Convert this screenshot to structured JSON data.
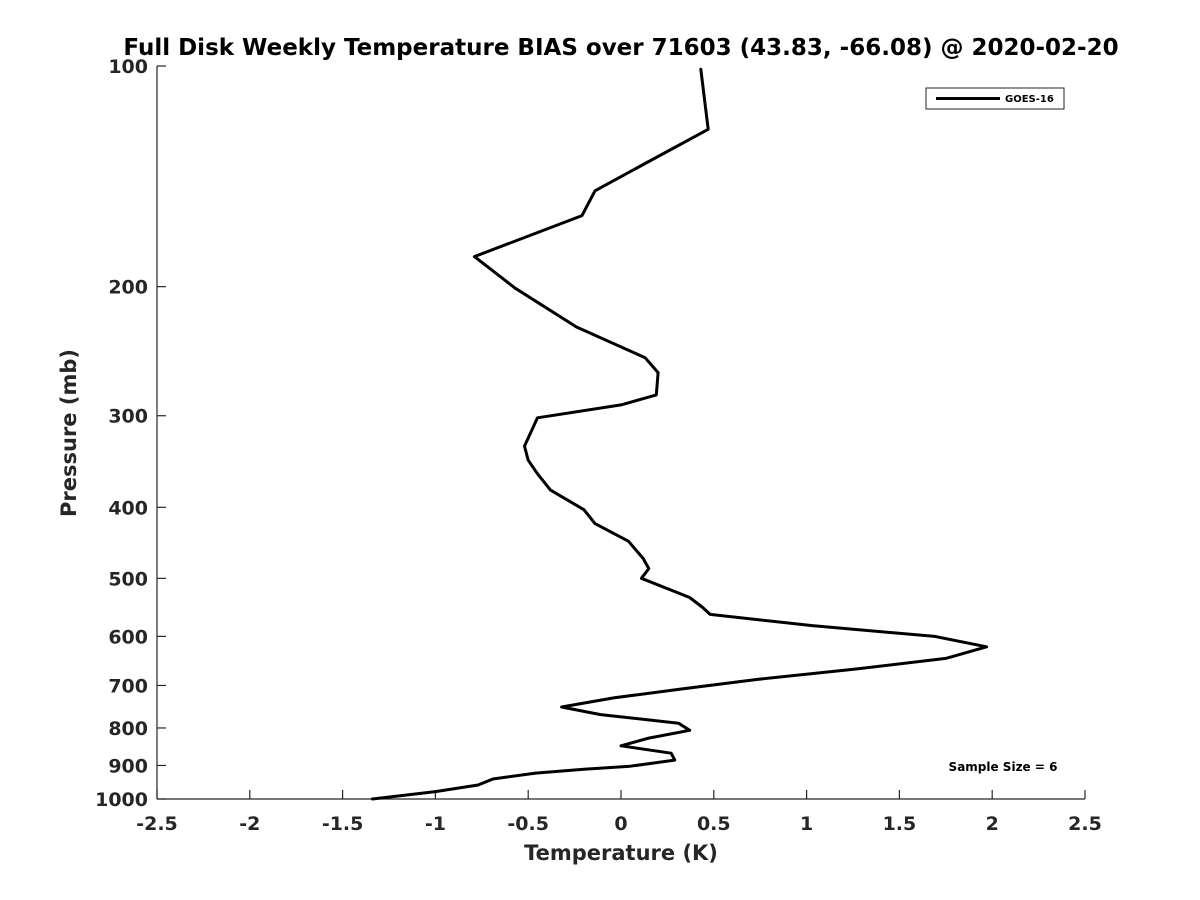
{
  "chart_data": {
    "type": "line",
    "title": "Full Disk Weekly Temperature BIAS over 71603 (43.83, -66.08) @ 2020-02-20",
    "xlabel": "Temperature (K)",
    "ylabel": "Pressure (mb)",
    "xlim": [
      -2.5,
      2.5
    ],
    "ylim": [
      1000,
      100
    ],
    "y_scale": "log",
    "y_reversed": true,
    "x_ticks": [
      "-2.5",
      "-2",
      "-1.5",
      "-1",
      "-0.5",
      "0",
      "0.5",
      "1",
      "1.5",
      "2",
      "2.5"
    ],
    "x_tick_values": [
      -2.5,
      -2,
      -1.5,
      -1,
      -0.5,
      0,
      0.5,
      1,
      1.5,
      2,
      2.5
    ],
    "y_ticks": [
      "100",
      "200",
      "300",
      "400",
      "500",
      "600",
      "700",
      "800",
      "900",
      "1000"
    ],
    "y_tick_values": [
      100,
      200,
      300,
      400,
      500,
      600,
      700,
      800,
      900,
      1000
    ],
    "grid": false,
    "legend_position": "top-right",
    "annotation": "Sample Size = 6",
    "line_color": "#000000",
    "series": [
      {
        "name": "GOES-16",
        "points": [
          {
            "x": -1.34,
            "y": 1000
          },
          {
            "x": -1.0,
            "y": 977
          },
          {
            "x": -0.77,
            "y": 957
          },
          {
            "x": -0.69,
            "y": 939
          },
          {
            "x": -0.46,
            "y": 922
          },
          {
            "x": -0.2,
            "y": 911
          },
          {
            "x": 0.05,
            "y": 902
          },
          {
            "x": 0.29,
            "y": 885
          },
          {
            "x": 0.27,
            "y": 866
          },
          {
            "x": 0.0,
            "y": 846
          },
          {
            "x": 0.15,
            "y": 826
          },
          {
            "x": 0.37,
            "y": 806
          },
          {
            "x": 0.31,
            "y": 788
          },
          {
            "x": -0.11,
            "y": 767
          },
          {
            "x": -0.32,
            "y": 749
          },
          {
            "x": -0.04,
            "y": 728
          },
          {
            "x": 0.32,
            "y": 708
          },
          {
            "x": 0.73,
            "y": 687
          },
          {
            "x": 1.26,
            "y": 665
          },
          {
            "x": 1.75,
            "y": 643
          },
          {
            "x": 1.97,
            "y": 620
          },
          {
            "x": 1.69,
            "y": 600
          },
          {
            "x": 1.03,
            "y": 580
          },
          {
            "x": 0.48,
            "y": 560
          },
          {
            "x": 0.44,
            "y": 548
          },
          {
            "x": 0.37,
            "y": 531
          },
          {
            "x": 0.11,
            "y": 500
          },
          {
            "x": 0.15,
            "y": 485
          },
          {
            "x": 0.12,
            "y": 470
          },
          {
            "x": 0.04,
            "y": 445
          },
          {
            "x": -0.14,
            "y": 421
          },
          {
            "x": -0.2,
            "y": 403
          },
          {
            "x": -0.38,
            "y": 379
          },
          {
            "x": -0.45,
            "y": 360
          },
          {
            "x": -0.5,
            "y": 345
          },
          {
            "x": -0.52,
            "y": 330
          },
          {
            "x": -0.45,
            "y": 302
          },
          {
            "x": 0.0,
            "y": 290
          },
          {
            "x": 0.19,
            "y": 281
          },
          {
            "x": 0.2,
            "y": 262
          },
          {
            "x": 0.13,
            "y": 250
          },
          {
            "x": -0.24,
            "y": 227
          },
          {
            "x": -0.57,
            "y": 201
          },
          {
            "x": -0.79,
            "y": 182
          },
          {
            "x": -0.21,
            "y": 160
          },
          {
            "x": -0.14,
            "y": 148
          },
          {
            "x": 0.15,
            "y": 135
          },
          {
            "x": 0.47,
            "y": 122
          },
          {
            "x": 0.43,
            "y": 101
          }
        ]
      }
    ]
  }
}
